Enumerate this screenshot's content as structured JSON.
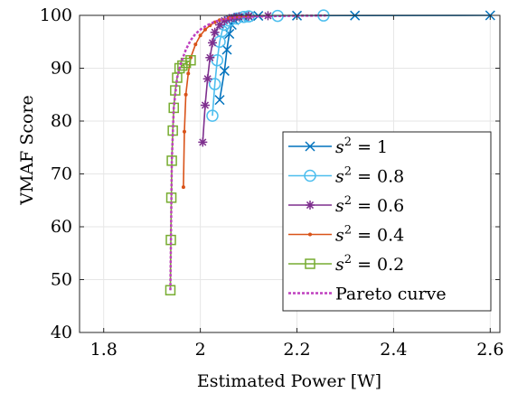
{
  "chart_data": {
    "type": "line",
    "xlabel": "Estimated Power [W]",
    "ylabel": "VMAF Score",
    "xlim": [
      1.75,
      2.62
    ],
    "ylim": [
      40,
      100
    ],
    "xticks": [
      1.8,
      2,
      2.2,
      2.4,
      2.6
    ],
    "xtick_labels": [
      "1.8",
      "2",
      "2.2",
      "2.4",
      "2.6"
    ],
    "yticks": [
      40,
      50,
      60,
      70,
      80,
      90,
      100
    ],
    "ytick_labels": [
      "40",
      "50",
      "60",
      "70",
      "80",
      "90",
      "100"
    ],
    "grid": true,
    "legend_position": "bottom-right",
    "series": [
      {
        "name": "s^2 = 1",
        "var": "s",
        "exp": "2",
        "eq": " = 1",
        "color": "#0072BD",
        "marker": "x",
        "dash": "none",
        "x": [
          2.04,
          2.05,
          2.055,
          2.06,
          2.065,
          2.07,
          2.08,
          2.09,
          2.1,
          2.12,
          2.2,
          2.32,
          2.6
        ],
        "y": [
          84,
          89.5,
          93.5,
          96.5,
          98.2,
          99.1,
          99.5,
          99.7,
          99.8,
          99.9,
          99.95,
          99.97,
          100
        ]
      },
      {
        "name": "s^2 = 0.8",
        "var": "s",
        "exp": "2",
        "eq": " = 0.8",
        "color": "#4DBEEE",
        "marker": "o",
        "dash": "none",
        "x": [
          2.025,
          2.03,
          2.035,
          2.04,
          2.045,
          2.05,
          2.06,
          2.075,
          2.09,
          2.1,
          2.16,
          2.255
        ],
        "y": [
          81,
          87,
          91.5,
          95,
          97,
          98.2,
          99,
          99.4,
          99.7,
          99.8,
          99.9,
          99.97
        ]
      },
      {
        "name": "s^2 = 0.6",
        "var": "s",
        "exp": "2",
        "eq": " = 0.6",
        "color": "#7E2F8E",
        "marker": "*",
        "dash": "none",
        "x": [
          2.005,
          2.01,
          2.015,
          2.02,
          2.025,
          2.03,
          2.04,
          2.05,
          2.06,
          2.07,
          2.08,
          2.1,
          2.14
        ],
        "y": [
          76,
          83,
          88,
          92,
          94.8,
          96.8,
          98.2,
          99,
          99.4,
          99.6,
          99.75,
          99.85,
          99.93
        ]
      },
      {
        "name": "s^2 = 0.4",
        "var": "s",
        "exp": "2",
        "eq": " = 0.4",
        "color": "#D95319",
        "marker": "dot",
        "dash": "none",
        "x": [
          1.965,
          1.967,
          1.97,
          1.975,
          1.98,
          1.99,
          2.0,
          2.01,
          2.02,
          2.03,
          2.04,
          2.06,
          2.08,
          2.1
        ],
        "y": [
          67.5,
          78,
          85,
          89,
          92,
          94.5,
          96.2,
          97.3,
          98.1,
          98.7,
          99.1,
          99.5,
          99.7,
          99.8
        ]
      },
      {
        "name": "s^2 = 0.2",
        "var": "s",
        "exp": "2",
        "eq": " = 0.2",
        "color": "#77AC30",
        "marker": "square",
        "dash": "none",
        "x": [
          1.938,
          1.939,
          1.94,
          1.941,
          1.943,
          1.945,
          1.948,
          1.952,
          1.957,
          1.963,
          1.97,
          1.98
        ],
        "y": [
          48,
          57.5,
          65.5,
          72.5,
          78.2,
          82.5,
          85.8,
          88.2,
          90,
          90.5,
          91,
          91.5
        ]
      },
      {
        "name": "Pareto curve",
        "var": "Pareto curve",
        "exp": "",
        "eq": "",
        "color": "#BF40BF",
        "marker": "none",
        "dash": "3,2",
        "x": [
          1.938,
          1.941,
          1.945,
          1.952,
          1.96,
          1.97,
          1.98,
          1.99,
          2.0,
          2.01,
          2.02,
          2.03,
          2.04,
          2.06,
          2.08,
          2.12,
          2.18,
          2.26
        ],
        "y": [
          48,
          72.5,
          82.5,
          88.2,
          91,
          93.5,
          95.3,
          96.5,
          97.3,
          97.9,
          98.4,
          98.8,
          99.1,
          99.45,
          99.65,
          99.8,
          99.9,
          99.97
        ]
      }
    ]
  }
}
